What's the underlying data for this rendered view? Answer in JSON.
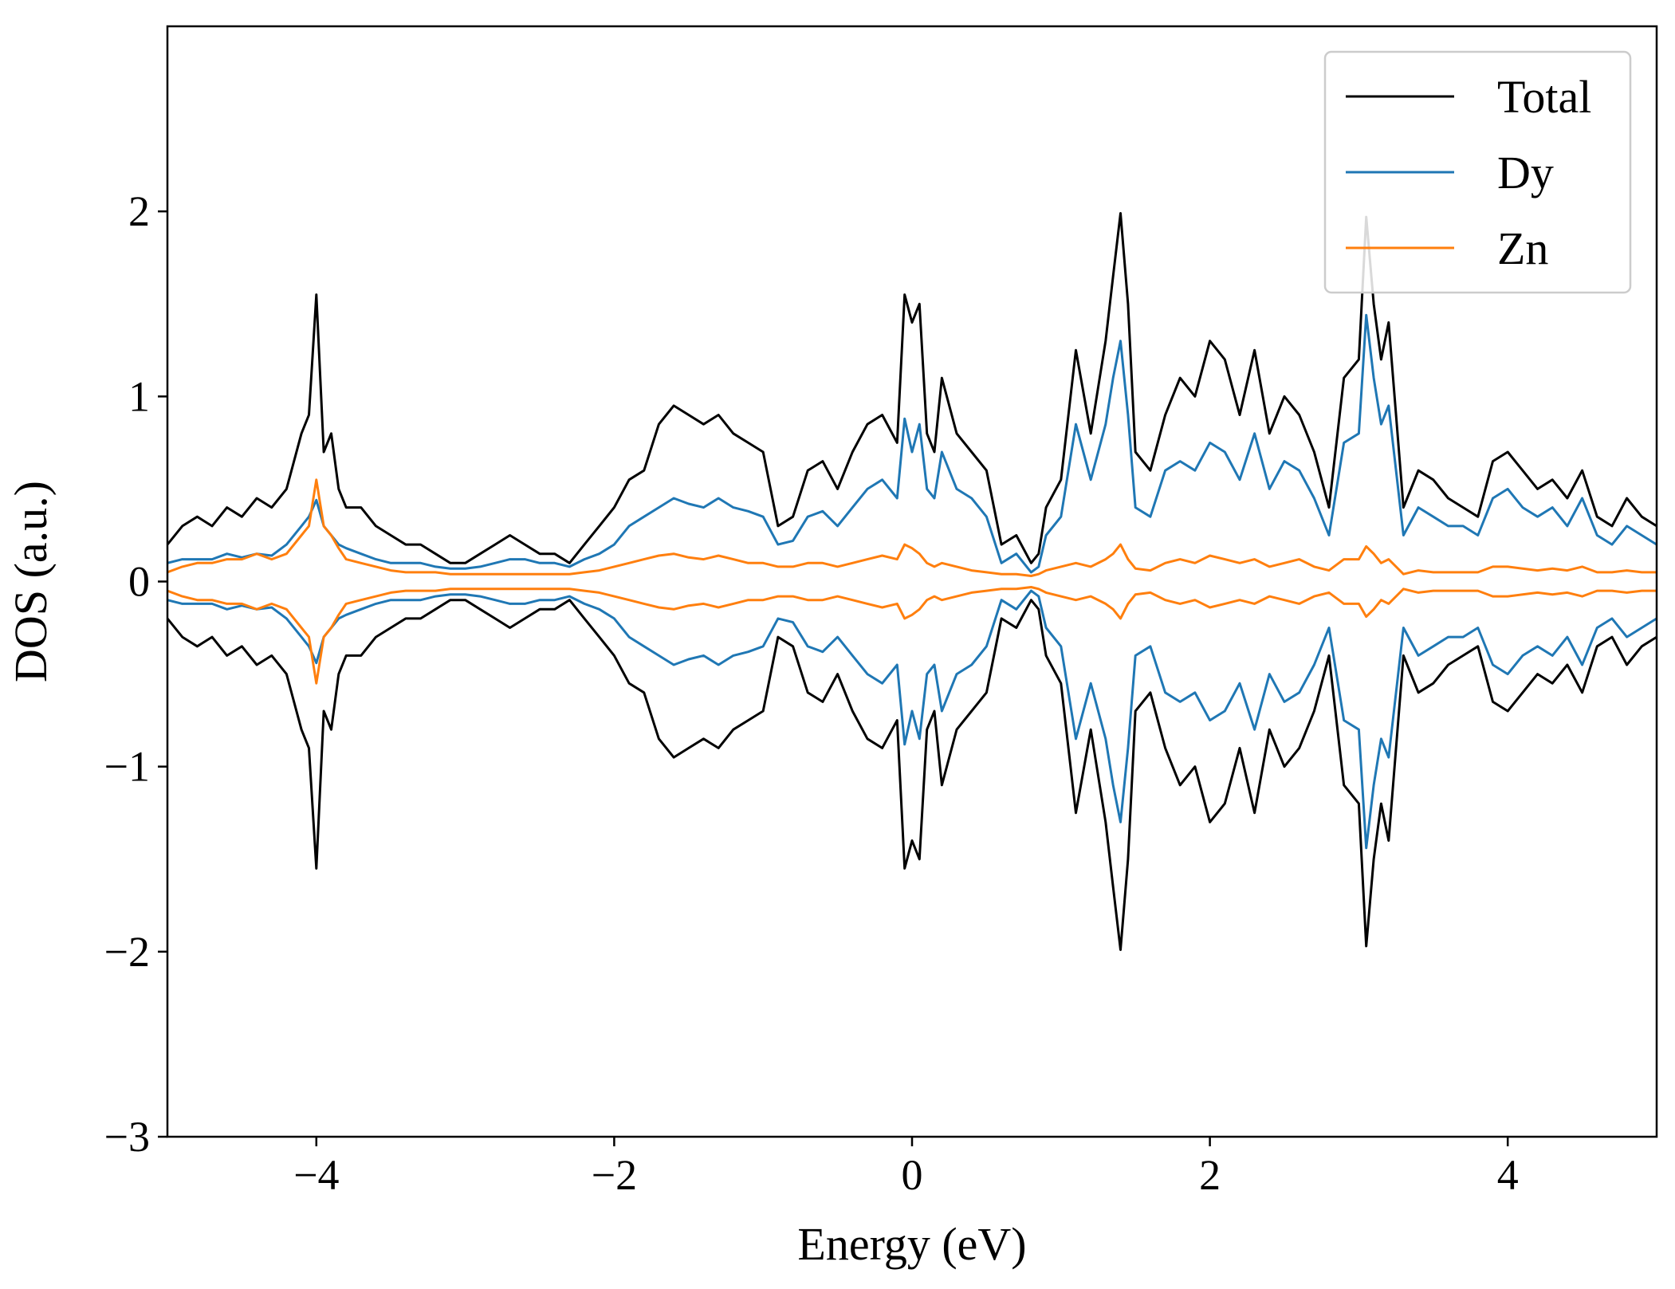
{
  "chart_data": {
    "type": "line",
    "xlabel": "Energy (eV)",
    "ylabel": "DOS (a.u.)",
    "xlim": [
      -5,
      5
    ],
    "ylim": [
      -3,
      3
    ],
    "x_ticks": [
      -4,
      -2,
      0,
      2,
      4
    ],
    "x_tick_labels": [
      "−4",
      "−2",
      "0",
      "2",
      "4"
    ],
    "y_ticks": [
      -3,
      -2,
      -1,
      0,
      1,
      2
    ],
    "y_tick_labels": [
      "−3",
      "−2",
      "−1",
      "0",
      "1",
      "2"
    ],
    "grid": false,
    "legend_position": "top-right",
    "series": [
      {
        "name": "Total",
        "color": "#000000",
        "x": [
          -5.0,
          -4.9,
          -4.8,
          -4.7,
          -4.6,
          -4.5,
          -4.4,
          -4.3,
          -4.2,
          -4.1,
          -4.05,
          -4.0,
          -3.95,
          -3.9,
          -3.85,
          -3.8,
          -3.7,
          -3.6,
          -3.5,
          -3.4,
          -3.3,
          -3.2,
          -3.1,
          -3.0,
          -2.9,
          -2.8,
          -2.7,
          -2.6,
          -2.5,
          -2.4,
          -2.3,
          -2.2,
          -2.1,
          -2.0,
          -1.9,
          -1.8,
          -1.7,
          -1.6,
          -1.5,
          -1.4,
          -1.3,
          -1.2,
          -1.1,
          -1.0,
          -0.9,
          -0.8,
          -0.7,
          -0.6,
          -0.5,
          -0.4,
          -0.3,
          -0.2,
          -0.1,
          -0.05,
          0.0,
          0.05,
          0.1,
          0.15,
          0.2,
          0.3,
          0.4,
          0.5,
          0.6,
          0.7,
          0.8,
          0.85,
          0.9,
          1.0,
          1.1,
          1.2,
          1.3,
          1.35,
          1.4,
          1.45,
          1.5,
          1.6,
          1.7,
          1.8,
          1.9,
          2.0,
          2.1,
          2.2,
          2.3,
          2.4,
          2.5,
          2.6,
          2.7,
          2.8,
          2.9,
          3.0,
          3.05,
          3.1,
          3.15,
          3.2,
          3.3,
          3.4,
          3.5,
          3.6,
          3.7,
          3.8,
          3.9,
          4.0,
          4.1,
          4.2,
          4.3,
          4.4,
          4.5,
          4.6,
          4.7,
          4.8,
          4.9,
          5.0
        ],
        "values": [
          0.2,
          0.3,
          0.35,
          0.3,
          0.4,
          0.35,
          0.45,
          0.4,
          0.5,
          0.8,
          0.9,
          1.55,
          0.7,
          0.8,
          0.5,
          0.4,
          0.4,
          0.3,
          0.25,
          0.2,
          0.2,
          0.15,
          0.1,
          0.1,
          0.15,
          0.2,
          0.25,
          0.2,
          0.15,
          0.15,
          0.1,
          0.2,
          0.3,
          0.4,
          0.55,
          0.6,
          0.85,
          0.95,
          0.9,
          0.85,
          0.9,
          0.8,
          0.75,
          0.7,
          0.3,
          0.35,
          0.6,
          0.65,
          0.5,
          0.7,
          0.85,
          0.9,
          0.75,
          1.55,
          1.4,
          1.5,
          0.8,
          0.7,
          1.1,
          0.8,
          0.7,
          0.6,
          0.2,
          0.25,
          0.1,
          0.15,
          0.4,
          0.55,
          1.25,
          0.8,
          1.3,
          1.65,
          1.99,
          1.5,
          0.7,
          0.6,
          0.9,
          1.1,
          1.0,
          1.3,
          1.2,
          0.9,
          1.25,
          0.8,
          1.0,
          0.9,
          0.7,
          0.4,
          1.1,
          1.2,
          1.97,
          1.5,
          1.2,
          1.4,
          0.4,
          0.6,
          0.55,
          0.45,
          0.4,
          0.35,
          0.65,
          0.7,
          0.6,
          0.5,
          0.55,
          0.45,
          0.6,
          0.35,
          0.3,
          0.45,
          0.35,
          0.3
        ]
      },
      {
        "name": "Dy",
        "color": "#1f77b4",
        "x": [
          -5.0,
          -4.9,
          -4.8,
          -4.7,
          -4.6,
          -4.5,
          -4.4,
          -4.3,
          -4.2,
          -4.1,
          -4.05,
          -4.0,
          -3.95,
          -3.9,
          -3.85,
          -3.8,
          -3.7,
          -3.6,
          -3.5,
          -3.4,
          -3.3,
          -3.2,
          -3.1,
          -3.0,
          -2.9,
          -2.8,
          -2.7,
          -2.6,
          -2.5,
          -2.4,
          -2.3,
          -2.2,
          -2.1,
          -2.0,
          -1.9,
          -1.8,
          -1.7,
          -1.6,
          -1.5,
          -1.4,
          -1.3,
          -1.2,
          -1.1,
          -1.0,
          -0.9,
          -0.8,
          -0.7,
          -0.6,
          -0.5,
          -0.4,
          -0.3,
          -0.2,
          -0.1,
          -0.05,
          0.0,
          0.05,
          0.1,
          0.15,
          0.2,
          0.3,
          0.4,
          0.5,
          0.6,
          0.7,
          0.8,
          0.85,
          0.9,
          1.0,
          1.1,
          1.2,
          1.3,
          1.35,
          1.4,
          1.45,
          1.5,
          1.6,
          1.7,
          1.8,
          1.9,
          2.0,
          2.1,
          2.2,
          2.3,
          2.4,
          2.5,
          2.6,
          2.7,
          2.8,
          2.9,
          3.0,
          3.05,
          3.1,
          3.15,
          3.2,
          3.3,
          3.4,
          3.5,
          3.6,
          3.7,
          3.8,
          3.9,
          4.0,
          4.1,
          4.2,
          4.3,
          4.4,
          4.5,
          4.6,
          4.7,
          4.8,
          4.9,
          5.0
        ],
        "values": [
          0.1,
          0.12,
          0.12,
          0.12,
          0.15,
          0.13,
          0.15,
          0.14,
          0.2,
          0.3,
          0.35,
          0.44,
          0.3,
          0.25,
          0.2,
          0.18,
          0.15,
          0.12,
          0.1,
          0.1,
          0.1,
          0.08,
          0.07,
          0.07,
          0.08,
          0.1,
          0.12,
          0.12,
          0.1,
          0.1,
          0.08,
          0.12,
          0.15,
          0.2,
          0.3,
          0.35,
          0.4,
          0.45,
          0.42,
          0.4,
          0.45,
          0.4,
          0.38,
          0.35,
          0.2,
          0.22,
          0.35,
          0.38,
          0.3,
          0.4,
          0.5,
          0.55,
          0.45,
          0.88,
          0.7,
          0.85,
          0.5,
          0.45,
          0.7,
          0.5,
          0.45,
          0.35,
          0.1,
          0.15,
          0.05,
          0.08,
          0.25,
          0.35,
          0.85,
          0.55,
          0.85,
          1.1,
          1.3,
          0.9,
          0.4,
          0.35,
          0.6,
          0.65,
          0.6,
          0.75,
          0.7,
          0.55,
          0.8,
          0.5,
          0.65,
          0.6,
          0.45,
          0.25,
          0.75,
          0.8,
          1.44,
          1.1,
          0.85,
          0.95,
          0.25,
          0.4,
          0.35,
          0.3,
          0.3,
          0.25,
          0.45,
          0.5,
          0.4,
          0.35,
          0.4,
          0.3,
          0.45,
          0.25,
          0.2,
          0.3,
          0.25,
          0.2
        ]
      },
      {
        "name": "Zn",
        "color": "#ff7f0e",
        "x": [
          -5.0,
          -4.9,
          -4.8,
          -4.7,
          -4.6,
          -4.5,
          -4.4,
          -4.3,
          -4.2,
          -4.1,
          -4.05,
          -4.0,
          -3.95,
          -3.9,
          -3.85,
          -3.8,
          -3.7,
          -3.6,
          -3.5,
          -3.4,
          -3.3,
          -3.2,
          -3.1,
          -3.0,
          -2.9,
          -2.8,
          -2.7,
          -2.6,
          -2.5,
          -2.4,
          -2.3,
          -2.2,
          -2.1,
          -2.0,
          -1.9,
          -1.8,
          -1.7,
          -1.6,
          -1.5,
          -1.4,
          -1.3,
          -1.2,
          -1.1,
          -1.0,
          -0.9,
          -0.8,
          -0.7,
          -0.6,
          -0.5,
          -0.4,
          -0.3,
          -0.2,
          -0.1,
          -0.05,
          0.0,
          0.05,
          0.1,
          0.15,
          0.2,
          0.3,
          0.4,
          0.5,
          0.6,
          0.7,
          0.8,
          0.85,
          0.9,
          1.0,
          1.1,
          1.2,
          1.3,
          1.35,
          1.4,
          1.45,
          1.5,
          1.6,
          1.7,
          1.8,
          1.9,
          2.0,
          2.1,
          2.2,
          2.3,
          2.4,
          2.5,
          2.6,
          2.7,
          2.8,
          2.9,
          3.0,
          3.05,
          3.1,
          3.15,
          3.2,
          3.3,
          3.4,
          3.5,
          3.6,
          3.7,
          3.8,
          3.9,
          4.0,
          4.1,
          4.2,
          4.3,
          4.4,
          4.5,
          4.6,
          4.7,
          4.8,
          4.9,
          5.0
        ],
        "values": [
          0.05,
          0.08,
          0.1,
          0.1,
          0.12,
          0.12,
          0.15,
          0.12,
          0.15,
          0.25,
          0.3,
          0.55,
          0.3,
          0.25,
          0.18,
          0.12,
          0.1,
          0.08,
          0.06,
          0.05,
          0.05,
          0.05,
          0.04,
          0.04,
          0.04,
          0.04,
          0.04,
          0.04,
          0.04,
          0.04,
          0.04,
          0.05,
          0.06,
          0.08,
          0.1,
          0.12,
          0.14,
          0.15,
          0.13,
          0.12,
          0.14,
          0.12,
          0.1,
          0.1,
          0.08,
          0.08,
          0.1,
          0.1,
          0.08,
          0.1,
          0.12,
          0.14,
          0.12,
          0.2,
          0.18,
          0.15,
          0.1,
          0.08,
          0.1,
          0.08,
          0.06,
          0.05,
          0.04,
          0.04,
          0.03,
          0.04,
          0.06,
          0.08,
          0.1,
          0.08,
          0.12,
          0.15,
          0.2,
          0.12,
          0.07,
          0.06,
          0.1,
          0.12,
          0.1,
          0.14,
          0.12,
          0.1,
          0.12,
          0.08,
          0.1,
          0.12,
          0.08,
          0.06,
          0.12,
          0.12,
          0.19,
          0.15,
          0.1,
          0.12,
          0.04,
          0.06,
          0.05,
          0.05,
          0.05,
          0.05,
          0.08,
          0.08,
          0.07,
          0.06,
          0.07,
          0.06,
          0.08,
          0.05,
          0.05,
          0.06,
          0.05,
          0.05
        ]
      }
    ]
  }
}
